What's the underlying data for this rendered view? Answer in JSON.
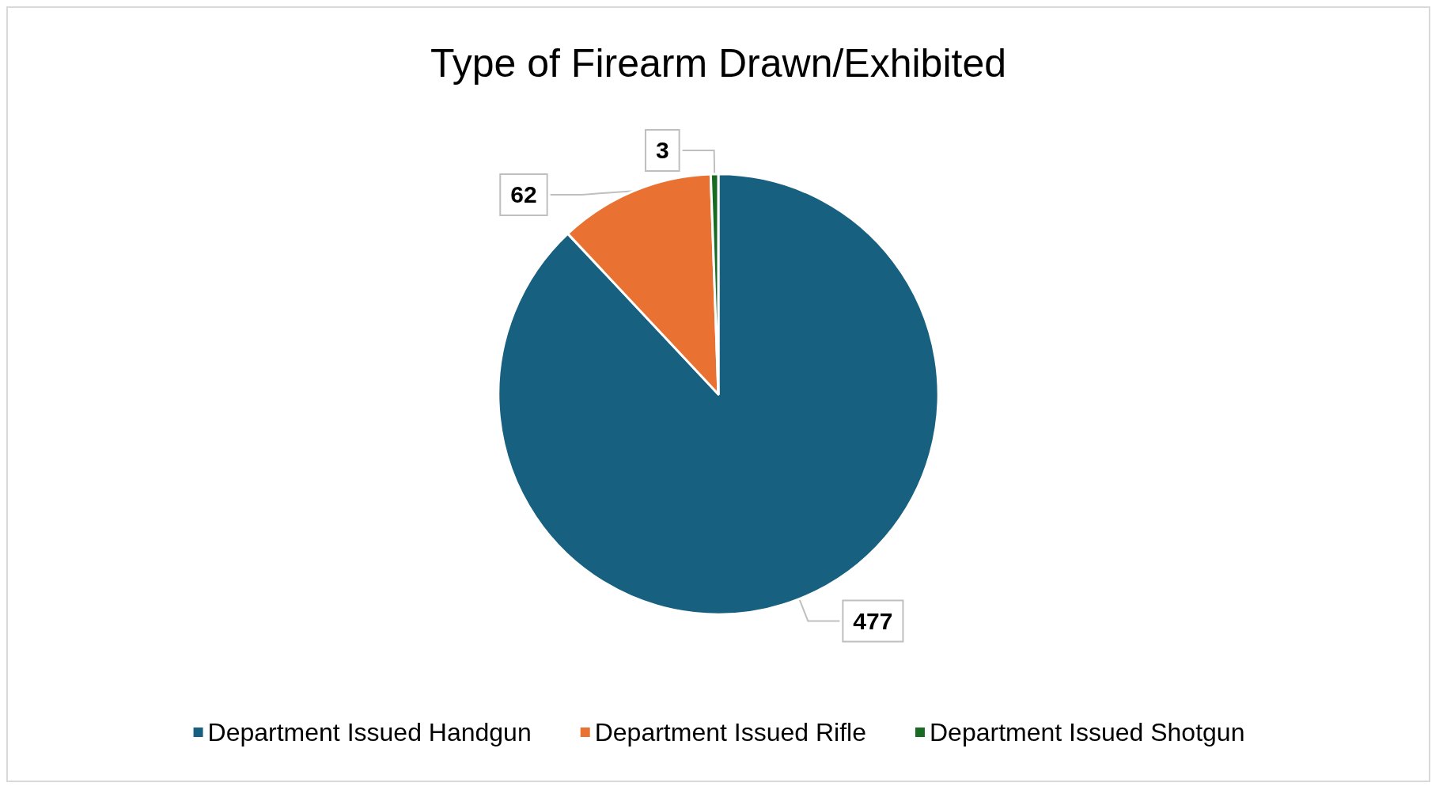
{
  "chart_data": {
    "type": "pie",
    "title": "Type of Firearm Drawn/Exhibited",
    "categories": [
      "Department Issued Handgun",
      "Department Issued Rifle",
      "Department Issued Shotgun"
    ],
    "values": [
      477,
      62,
      3
    ],
    "colors": [
      "#17607f",
      "#e97132",
      "#196b24"
    ],
    "data_labels": true,
    "legend": "bottom"
  }
}
